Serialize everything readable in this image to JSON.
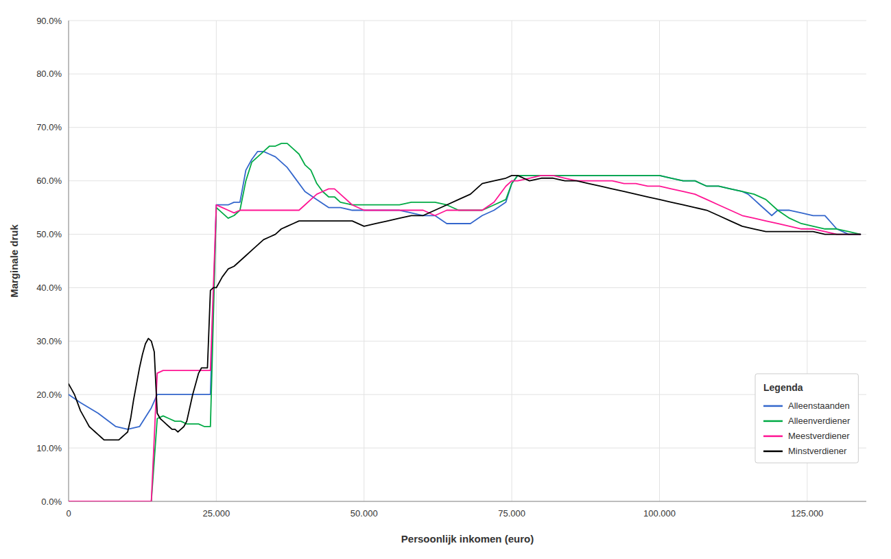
{
  "chart_data": {
    "type": "line",
    "xlabel": "Persoonlijk inkomen (euro)",
    "ylabel": "Marginale druk",
    "legend_title": "Legenda",
    "legend": "lower right",
    "grid": true,
    "xlim": [
      0,
      135000
    ],
    "ylim": [
      0.0,
      0.9
    ],
    "xticks": [
      0,
      {
        "value": 25000,
        "label": "25.000"
      },
      {
        "value": 50000,
        "label": "50.000"
      },
      {
        "value": 75000,
        "label": "75.000"
      },
      {
        "value": 100000,
        "label": "100.000"
      },
      {
        "value": 125000,
        "label": "125.000"
      }
    ],
    "yticks": [
      {
        "value": 0.0,
        "label": "0.0%"
      },
      {
        "value": 0.1,
        "label": "10.0%"
      },
      {
        "value": 0.2,
        "label": "20.0%"
      },
      {
        "value": 0.3,
        "label": "30.0%"
      },
      {
        "value": 0.4,
        "label": "40.0%"
      },
      {
        "value": 0.5,
        "label": "50.0%"
      },
      {
        "value": 0.6,
        "label": "60.0%"
      },
      {
        "value": 0.7,
        "label": "70.0%"
      },
      {
        "value": 0.8,
        "label": "80.0%"
      },
      {
        "value": 0.9,
        "label": "90.0%"
      }
    ],
    "series": [
      {
        "name": "Alleenstaanden",
        "color": "#3366CC",
        "x": [
          0,
          2000,
          5000,
          8000,
          10000,
          12000,
          14000,
          15000,
          16000,
          17000,
          18000,
          19000,
          20000,
          21000,
          22000,
          23000,
          24000,
          25000,
          26000,
          27000,
          28000,
          29000,
          30000,
          31000,
          32000,
          33000,
          34000,
          35000,
          36000,
          37000,
          38000,
          40000,
          42000,
          44000,
          46000,
          48000,
          50000,
          52000,
          54000,
          56000,
          58000,
          60000,
          62000,
          64000,
          66000,
          68000,
          70000,
          72000,
          74000,
          75000,
          76000,
          78000,
          80000,
          82000,
          84000,
          86000,
          88000,
          90000,
          92000,
          94000,
          96000,
          98000,
          100000,
          102000,
          104000,
          106000,
          108000,
          110000,
          112000,
          114000,
          115000,
          116000,
          117000,
          118000,
          119000,
          120000,
          122000,
          124000,
          126000,
          128000,
          130000,
          132000,
          134000
        ],
        "values": [
          0.2,
          0.185,
          0.165,
          0.14,
          0.135,
          0.14,
          0.175,
          0.2,
          0.2,
          0.2,
          0.2,
          0.2,
          0.2,
          0.2,
          0.2,
          0.2,
          0.2,
          0.555,
          0.555,
          0.555,
          0.56,
          0.56,
          0.62,
          0.64,
          0.655,
          0.655,
          0.65,
          0.645,
          0.635,
          0.625,
          0.61,
          0.58,
          0.565,
          0.55,
          0.55,
          0.545,
          0.545,
          0.545,
          0.545,
          0.545,
          0.54,
          0.535,
          0.535,
          0.52,
          0.52,
          0.52,
          0.535,
          0.545,
          0.56,
          0.595,
          0.61,
          0.61,
          0.61,
          0.61,
          0.61,
          0.61,
          0.61,
          0.61,
          0.61,
          0.61,
          0.61,
          0.61,
          0.61,
          0.605,
          0.6,
          0.6,
          0.59,
          0.59,
          0.585,
          0.58,
          0.575,
          0.565,
          0.555,
          0.545,
          0.535,
          0.545,
          0.545,
          0.54,
          0.535,
          0.535,
          0.51,
          0.5,
          0.5
        ]
      },
      {
        "name": "Alleenverdiener",
        "color": "#00AA44",
        "x": [
          0,
          5000,
          10000,
          14000,
          15000,
          16000,
          17000,
          18000,
          19000,
          20000,
          21000,
          22000,
          23000,
          24000,
          25000,
          26000,
          27000,
          28000,
          29000,
          30000,
          31000,
          32000,
          33000,
          34000,
          35000,
          36000,
          37000,
          38000,
          39000,
          40000,
          41000,
          42000,
          43000,
          44000,
          45000,
          46000,
          48000,
          50000,
          52000,
          54000,
          56000,
          58000,
          60000,
          62000,
          64000,
          66000,
          68000,
          70000,
          72000,
          74000,
          75000,
          76000,
          78000,
          80000,
          82000,
          84000,
          86000,
          88000,
          90000,
          92000,
          94000,
          96000,
          98000,
          100000,
          102000,
          104000,
          106000,
          108000,
          110000,
          112000,
          114000,
          116000,
          118000,
          120000,
          122000,
          124000,
          126000,
          128000,
          130000,
          132000,
          134000
        ],
        "values": [
          0.0,
          0.0,
          0.0,
          0.0,
          0.155,
          0.16,
          0.155,
          0.15,
          0.15,
          0.145,
          0.145,
          0.145,
          0.14,
          0.14,
          0.55,
          0.54,
          0.53,
          0.535,
          0.545,
          0.6,
          0.635,
          0.645,
          0.655,
          0.665,
          0.665,
          0.67,
          0.67,
          0.66,
          0.65,
          0.63,
          0.62,
          0.595,
          0.58,
          0.57,
          0.57,
          0.56,
          0.555,
          0.555,
          0.555,
          0.555,
          0.555,
          0.56,
          0.56,
          0.56,
          0.555,
          0.545,
          0.545,
          0.545,
          0.555,
          0.565,
          0.595,
          0.61,
          0.61,
          0.61,
          0.61,
          0.61,
          0.61,
          0.61,
          0.61,
          0.61,
          0.61,
          0.61,
          0.61,
          0.61,
          0.605,
          0.6,
          0.6,
          0.59,
          0.59,
          0.585,
          0.58,
          0.575,
          0.565,
          0.545,
          0.53,
          0.52,
          0.515,
          0.51,
          0.51,
          0.505,
          0.5
        ]
      },
      {
        "name": "Meestverdiener",
        "color": "#FF1493",
        "x": [
          0,
          5000,
          10000,
          14000,
          15000,
          16000,
          17000,
          18000,
          19000,
          20000,
          21000,
          22000,
          23000,
          24000,
          25000,
          26000,
          27000,
          28000,
          29000,
          30000,
          31000,
          32000,
          33000,
          34000,
          35000,
          36000,
          37000,
          38000,
          39000,
          40000,
          41000,
          42000,
          43000,
          44000,
          45000,
          46000,
          48000,
          50000,
          52000,
          54000,
          56000,
          58000,
          60000,
          62000,
          64000,
          66000,
          68000,
          70000,
          72000,
          74000,
          75000,
          76000,
          78000,
          80000,
          82000,
          84000,
          86000,
          88000,
          90000,
          92000,
          94000,
          96000,
          98000,
          100000,
          102000,
          104000,
          106000,
          108000,
          110000,
          112000,
          114000,
          116000,
          118000,
          120000,
          122000,
          124000,
          126000,
          128000,
          130000,
          132000,
          134000
        ],
        "values": [
          0.0,
          0.0,
          0.0,
          0.0,
          0.24,
          0.245,
          0.245,
          0.245,
          0.245,
          0.245,
          0.245,
          0.245,
          0.245,
          0.245,
          0.555,
          0.55,
          0.545,
          0.54,
          0.545,
          0.545,
          0.545,
          0.545,
          0.545,
          0.545,
          0.545,
          0.545,
          0.545,
          0.545,
          0.545,
          0.555,
          0.565,
          0.575,
          0.58,
          0.585,
          0.585,
          0.575,
          0.555,
          0.545,
          0.545,
          0.545,
          0.545,
          0.545,
          0.545,
          0.535,
          0.545,
          0.545,
          0.545,
          0.545,
          0.56,
          0.59,
          0.6,
          0.6,
          0.605,
          0.61,
          0.61,
          0.605,
          0.6,
          0.6,
          0.6,
          0.6,
          0.595,
          0.595,
          0.59,
          0.59,
          0.585,
          0.58,
          0.575,
          0.565,
          0.555,
          0.545,
          0.535,
          0.53,
          0.525,
          0.52,
          0.515,
          0.51,
          0.51,
          0.505,
          0.5,
          0.5,
          0.5
        ]
      },
      {
        "name": "Minstverdiener",
        "color": "#000000",
        "x": [
          0,
          500,
          1000,
          1500,
          2000,
          2500,
          3000,
          3500,
          4000,
          4500,
          5000,
          5500,
          6000,
          6500,
          7000,
          7500,
          8000,
          8500,
          9000,
          9500,
          10000,
          10500,
          11000,
          11500,
          12000,
          12500,
          13000,
          13500,
          14000,
          14500,
          15000,
          15500,
          16000,
          16500,
          17000,
          17500,
          18000,
          18500,
          19000,
          19500,
          20000,
          20500,
          21000,
          21500,
          22000,
          22500,
          23000,
          23500,
          24000,
          24500,
          25000,
          26000,
          27000,
          28000,
          29000,
          30000,
          31000,
          32000,
          33000,
          34000,
          35000,
          36000,
          37000,
          38000,
          39000,
          40000,
          42000,
          44000,
          46000,
          48000,
          50000,
          52000,
          54000,
          56000,
          58000,
          60000,
          62000,
          64000,
          66000,
          68000,
          70000,
          72000,
          74000,
          75000,
          76000,
          78000,
          80000,
          82000,
          84000,
          86000,
          88000,
          90000,
          92000,
          94000,
          96000,
          98000,
          100000,
          102000,
          104000,
          106000,
          108000,
          110000,
          112000,
          114000,
          116000,
          118000,
          120000,
          122000,
          124000,
          126000,
          128000,
          130000,
          132000,
          134000
        ],
        "values": [
          0.22,
          0.21,
          0.2,
          0.185,
          0.17,
          0.16,
          0.15,
          0.14,
          0.135,
          0.13,
          0.125,
          0.12,
          0.115,
          0.115,
          0.115,
          0.115,
          0.115,
          0.115,
          0.12,
          0.125,
          0.13,
          0.155,
          0.19,
          0.22,
          0.25,
          0.275,
          0.295,
          0.305,
          0.3,
          0.28,
          0.165,
          0.155,
          0.15,
          0.145,
          0.14,
          0.135,
          0.135,
          0.13,
          0.135,
          0.14,
          0.15,
          0.175,
          0.2,
          0.22,
          0.24,
          0.25,
          0.25,
          0.25,
          0.395,
          0.4,
          0.4,
          0.42,
          0.435,
          0.44,
          0.45,
          0.46,
          0.47,
          0.48,
          0.49,
          0.495,
          0.5,
          0.51,
          0.515,
          0.52,
          0.525,
          0.525,
          0.525,
          0.525,
          0.525,
          0.525,
          0.515,
          0.52,
          0.525,
          0.53,
          0.535,
          0.535,
          0.545,
          0.555,
          0.565,
          0.575,
          0.595,
          0.6,
          0.605,
          0.61,
          0.61,
          0.6,
          0.605,
          0.605,
          0.6,
          0.6,
          0.595,
          0.59,
          0.585,
          0.58,
          0.575,
          0.57,
          0.565,
          0.56,
          0.555,
          0.55,
          0.545,
          0.535,
          0.525,
          0.515,
          0.51,
          0.505,
          0.505,
          0.505,
          0.505,
          0.505,
          0.5,
          0.5,
          0.5,
          0.5
        ]
      }
    ]
  }
}
